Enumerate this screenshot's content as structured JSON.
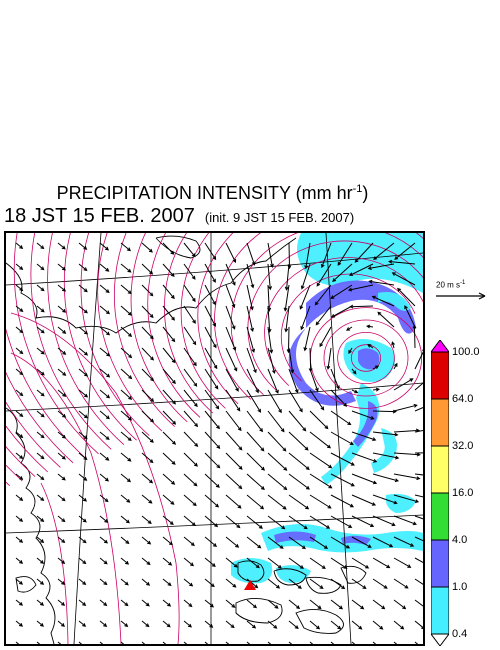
{
  "title": {
    "main": "PRECIPITATION INTENSITY (mm hr",
    "sup": "-1",
    "close": ")"
  },
  "subtitle": {
    "time": "18 JST 15 FEB. 2007",
    "init": "(init. 9 JST 15 FEB. 2007)"
  },
  "reference_vector": {
    "label": "20 m s",
    "sup": "-1"
  },
  "colorbar": {
    "levels": [
      "100.0",
      "64.0",
      "32.0",
      "16.0",
      "4.0",
      "1.0",
      "0.4"
    ],
    "colors": [
      "#ff00ff",
      "#dd0000",
      "#ff9933",
      "#ffff66",
      "#33dd33",
      "#6666ff",
      "#44eeff",
      "#ffffff"
    ]
  },
  "map": {
    "wind_arrow_color": "#000000",
    "contour_color": "#cc0066",
    "coast_color": "#000000",
    "grid_color": "#000000"
  }
}
